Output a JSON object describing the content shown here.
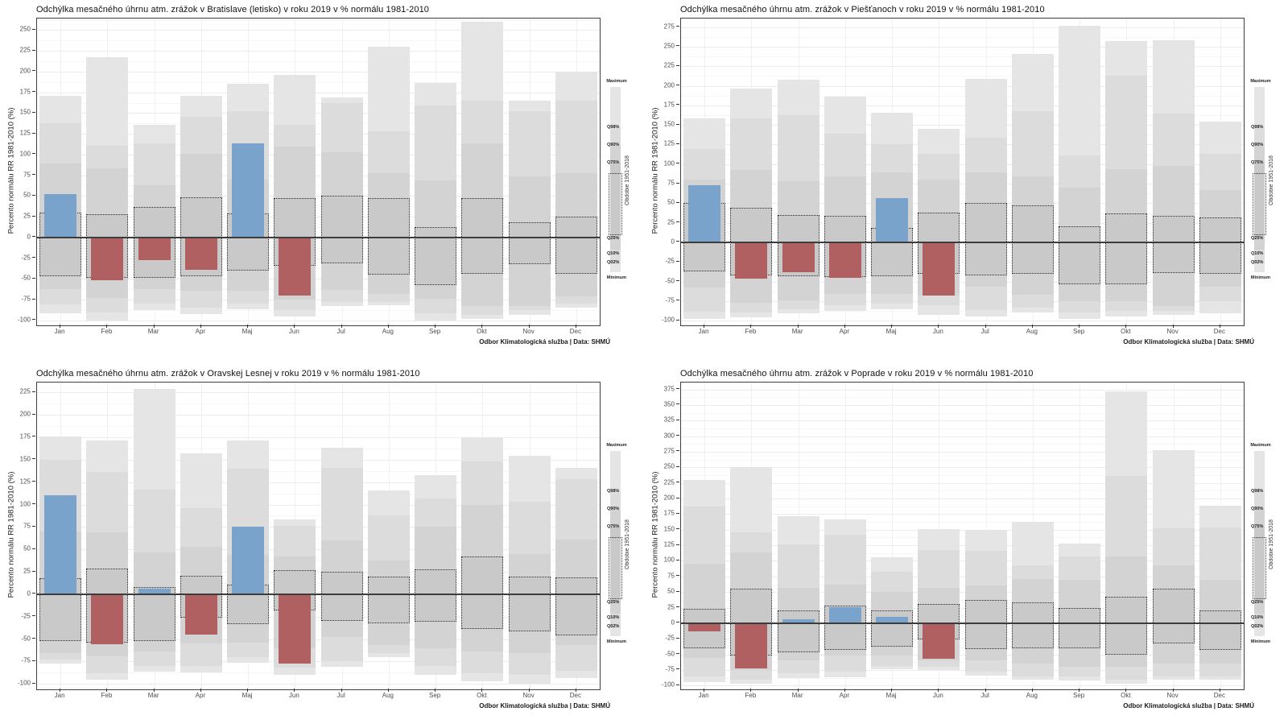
{
  "chart_data": {
    "type": "bar",
    "months": [
      "Jan",
      "Feb",
      "Mar",
      "Apr",
      "Maj",
      "Jun",
      "Jul",
      "Aug",
      "Sep",
      "Okt",
      "Nov",
      "Dec"
    ],
    "legend": {
      "top_label": "Maximum",
      "bottom_label": "Minimum",
      "quantile_labels": [
        "Q98%",
        "Q90%",
        "Q75%",
        "Q25%",
        "Q10%",
        "Q02%"
      ],
      "period_label": "Obdobie 1951-2018"
    },
    "colors": {
      "positive_bar": "#7AA3CC",
      "negative_bar": "#B06060",
      "band_min_max": "#e5e5e5",
      "band_q02_q98": "#dcdcdc",
      "band_q10_q90": "#d3d3d3",
      "band_q25_q75": "#c9c9c9",
      "zero_line": "#3c3c3c"
    },
    "charts": [
      {
        "title": "Odchýlka mesačného úhrnu atm. zrážok v Bratislave (letisko) v roku 2019 v % normálu 1981-2010",
        "ylabel": "Percento normálu RR 1981-2010 (%)",
        "caption": "Odbor Klimatologická služba | Data: SHMÚ",
        "y_ticks": [
          250,
          225,
          200,
          175,
          150,
          125,
          100,
          75,
          50,
          25,
          0,
          -25,
          -50,
          -75,
          -100
        ],
        "y_display": [
          264,
          -106
        ],
        "values_2019": [
          52,
          -52,
          -27,
          -39,
          113,
          -70,
          null,
          null,
          null,
          null,
          null,
          null
        ],
        "max": [
          171,
          217,
          136,
          171,
          185,
          196,
          169,
          230,
          186,
          260,
          165,
          200
        ],
        "q98": [
          138,
          111,
          113,
          146,
          152,
          136,
          162,
          128,
          159,
          165,
          152,
          165
        ],
        "q90": [
          89,
          83,
          63,
          101,
          70,
          110,
          103,
          78,
          69,
          113,
          74,
          78
        ],
        "q75": [
          30,
          28,
          37,
          48,
          29,
          47,
          50,
          47,
          12,
          47,
          18,
          25
        ],
        "q25": [
          -47,
          -49,
          -49,
          -47,
          -40,
          -34,
          -31,
          -45,
          -57,
          -44,
          -32,
          -44
        ],
        "q10": [
          -62,
          -73,
          -62,
          -64,
          -64,
          -75,
          -63,
          -68,
          -74,
          -83,
          -83,
          -71
        ],
        "q02": [
          -81,
          -90,
          -80,
          -85,
          -80,
          -88,
          -78,
          -78,
          -91,
          -93,
          -88,
          -80
        ],
        "min": [
          -91,
          -100,
          -88,
          -92,
          -87,
          -95,
          -83,
          -82,
          -100,
          -98,
          -93,
          -85
        ]
      },
      {
        "title": "Odchýlka mesačného úhrnu atm. zrážok v Piešťanoch v roku 2019 v % normálu 1981-2010",
        "ylabel": "Percento normálu RR 1981-2010 (%)",
        "caption": "Odbor Klimatologická služba | Data: SHMÚ",
        "y_ticks": [
          275,
          250,
          225,
          200,
          175,
          150,
          125,
          100,
          75,
          50,
          25,
          0,
          -25,
          -50,
          -75,
          -100
        ],
        "y_display": [
          286,
          -106
        ],
        "values_2019": [
          73,
          -46,
          -38,
          -45,
          57,
          -68,
          null,
          null,
          null,
          null,
          null,
          null
        ],
        "max": [
          158,
          196,
          208,
          186,
          166,
          145,
          209,
          241,
          277,
          257,
          258,
          154
        ],
        "q98": [
          119,
          158,
          163,
          139,
          126,
          113,
          134,
          168,
          111,
          213,
          165,
          113
        ],
        "q90": [
          80,
          93,
          78,
          84,
          89,
          80,
          89,
          84,
          70,
          94,
          98,
          67
        ],
        "q75": [
          50,
          44,
          35,
          34,
          18,
          38,
          50,
          47,
          21,
          37,
          34,
          32
        ],
        "q25": [
          -37,
          -42,
          -43,
          -44,
          -43,
          -40,
          -42,
          -40,
          -54,
          -54,
          -39,
          -40
        ],
        "q10": [
          -58,
          -77,
          -74,
          -66,
          -66,
          -68,
          -57,
          -67,
          -75,
          -75,
          -81,
          -57
        ],
        "q02": [
          -89,
          -90,
          -85,
          -80,
          -78,
          -80,
          -86,
          -83,
          -90,
          -88,
          -88,
          -75
        ],
        "min": [
          -98,
          -96,
          -91,
          -88,
          -85,
          -93,
          -95,
          -90,
          -98,
          -95,
          -93,
          -91
        ]
      },
      {
        "title": "Odchýlka mesačného úhrnu atm. zrážok v Oravskej Lesnej v roku 2019 v % normálu 1981-2010",
        "ylabel": "Percento normálu RR 1981-2010 (%)",
        "caption": "Odbor Klimatologická služba | Data: SHMÚ",
        "y_ticks": [
          225,
          200,
          175,
          150,
          125,
          100,
          75,
          50,
          25,
          0,
          -25,
          -50,
          -75,
          -100
        ],
        "y_display": [
          236,
          -106
        ],
        "values_2019": [
          110,
          -56,
          6,
          -45,
          75,
          -77,
          null,
          null,
          null,
          null,
          null,
          null
        ],
        "max": [
          176,
          171,
          229,
          157,
          171,
          83,
          163,
          116,
          133,
          175,
          154,
          141
        ],
        "q98": [
          150,
          136,
          117,
          96,
          140,
          76,
          141,
          88,
          107,
          148,
          103,
          128
        ],
        "q90": [
          70,
          69,
          47,
          53,
          44,
          42,
          60,
          38,
          75,
          100,
          45,
          61
        ],
        "q75": [
          18,
          29,
          8,
          21,
          11,
          27,
          25,
          20,
          28,
          42,
          20,
          19
        ],
        "q25": [
          -52,
          -54,
          -52,
          -26,
          -33,
          -18,
          -30,
          -32,
          -31,
          -39,
          -41,
          -46
        ],
        "q10": [
          -66,
          -69,
          -64,
          -55,
          -54,
          -60,
          -48,
          -57,
          -60,
          -64,
          -66,
          -57
        ],
        "q02": [
          -73,
          -88,
          -80,
          -80,
          -70,
          -82,
          -75,
          -66,
          -80,
          -88,
          -90,
          -85
        ],
        "min": [
          -77,
          -95,
          -86,
          -87,
          -76,
          -90,
          -81,
          -70,
          -90,
          -97,
          -100,
          -93
        ]
      },
      {
        "title": "Odchýlka mesačného úhrnu atm. zrážok v Poprade v roku 2019 v % normálu 1981-2010",
        "ylabel": "Percento normálu RR 1981-2010 (%)",
        "caption": "Odbor Klimatologická služba | Data: SHMÚ",
        "y_ticks": [
          375,
          350,
          325,
          300,
          275,
          250,
          225,
          200,
          175,
          150,
          125,
          100,
          75,
          50,
          25,
          0,
          -25,
          -50,
          -75,
          -100
        ],
        "y_display": [
          386,
          -106
        ],
        "values_2019": [
          -13,
          -73,
          6,
          26,
          10,
          -57,
          null,
          null,
          null,
          null,
          null,
          null
        ],
        "max": [
          230,
          251,
          172,
          166,
          106,
          151,
          150,
          162,
          128,
          372,
          278,
          189
        ],
        "q98": [
          187,
          146,
          127,
          142,
          82,
          118,
          116,
          93,
          107,
          236,
          152,
          154
        ],
        "q90": [
          95,
          114,
          57,
          62,
          50,
          57,
          61,
          71,
          70,
          107,
          93,
          69
        ],
        "q75": [
          23,
          55,
          21,
          28,
          20,
          31,
          37,
          34,
          24,
          42,
          55,
          20
        ],
        "q25": [
          -40,
          -52,
          -47,
          -43,
          -38,
          -26,
          -41,
          -40,
          -40,
          -50,
          -33,
          -43
        ],
        "q10": [
          -55,
          -75,
          -60,
          -52,
          -52,
          -60,
          -60,
          -65,
          -70,
          -70,
          -65,
          -65
        ],
        "q02": [
          -85,
          -90,
          -80,
          -78,
          -68,
          -70,
          -78,
          -85,
          -85,
          -90,
          -85,
          -85
        ],
        "min": [
          -95,
          -97,
          -88,
          -87,
          -74,
          -75,
          -84,
          -91,
          -92,
          -97,
          -91,
          -91
        ]
      }
    ]
  }
}
